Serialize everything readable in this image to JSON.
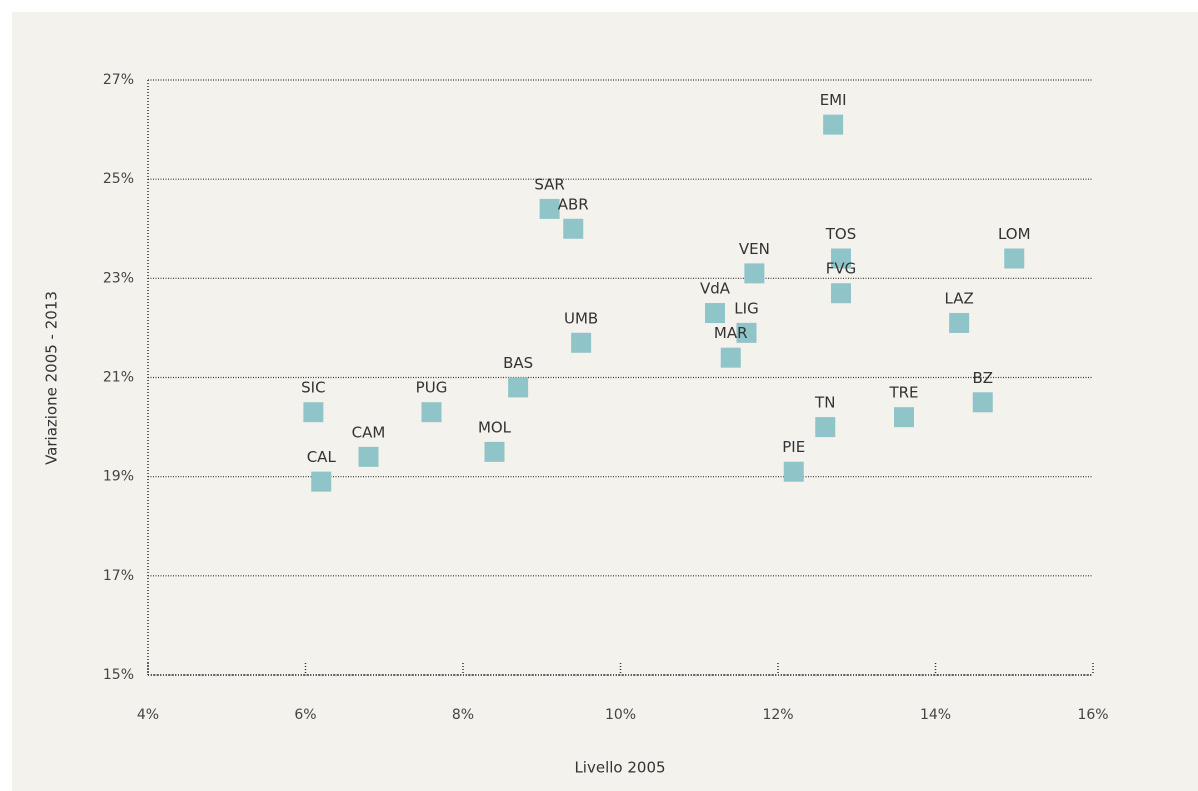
{
  "chart_data": {
    "type": "scatter",
    "x_label": "Livello 2005",
    "y_label": "Variazione 2005 - 2013",
    "labels": [
      "SIC",
      "CAL",
      "CAM",
      "PUG",
      "MOL",
      "BAS",
      "SAR",
      "ABR",
      "UMB",
      "VdA",
      "LIG",
      "MAR",
      "VEN",
      "EMI",
      "TOS",
      "FVG",
      "PIE",
      "TN",
      "TRE",
      "LAZ",
      "BZ",
      "LOM"
    ],
    "x": [
      6.1,
      6.2,
      6.8,
      7.6,
      8.4,
      8.7,
      9.1,
      9.4,
      9.5,
      11.2,
      11.6,
      11.4,
      11.7,
      12.7,
      12.8,
      12.8,
      12.2,
      12.6,
      13.6,
      14.3,
      14.6,
      15.0
    ],
    "values": [
      20.3,
      18.9,
      19.4,
      20.3,
      19.5,
      20.8,
      24.4,
      24.0,
      21.7,
      22.3,
      21.9,
      21.4,
      23.1,
      26.1,
      23.4,
      22.7,
      19.1,
      20.0,
      20.2,
      22.1,
      20.5,
      23.4
    ],
    "color": "#8fc4c9",
    "xlim": [
      4,
      16
    ],
    "ylim": [
      15,
      27
    ],
    "xticks": [
      {
        "value": 4,
        "label": "4%"
      },
      {
        "value": 6,
        "label": "6%"
      },
      {
        "value": 8,
        "label": "8%"
      },
      {
        "value": 10,
        "label": "10%"
      },
      {
        "value": 12,
        "label": "12%"
      },
      {
        "value": 14,
        "label": "14%"
      },
      {
        "value": 16,
        "label": "16%"
      }
    ],
    "yticks": [
      {
        "value": 15,
        "label": "15%"
      },
      {
        "value": 17,
        "label": "17%"
      },
      {
        "value": 19,
        "label": "19%"
      },
      {
        "value": 21,
        "label": "21%"
      },
      {
        "value": 23,
        "label": "23%"
      },
      {
        "value": 25,
        "label": "25%"
      },
      {
        "value": 27,
        "label": "27%"
      }
    ],
    "grid": true
  }
}
